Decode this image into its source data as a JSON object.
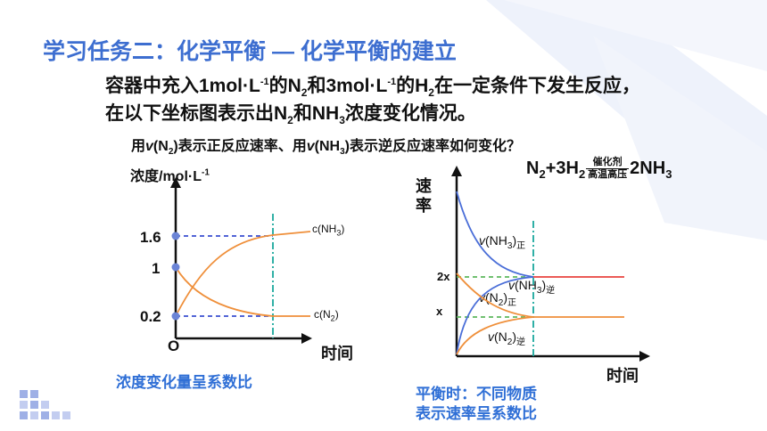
{
  "title": "学习任务二：化学平衡 — 化学平衡的建立",
  "paragraph": "容器中充入1mol·L-1的N2和3mol·L-1的H2在一定条件下发生反应，在以下坐标图表示出N2和NH3浓度变化情况。",
  "question": "用v(N2)表示正反应速率、用v(NH3)表示逆反应速率如何变化？",
  "equation": {
    "left": "N2+3H2",
    "catalyst": "催化剂",
    "condition": "高温高压",
    "right": "2NH3"
  },
  "concentration_chart": {
    "ylabel": "浓度/mol·L-1",
    "xlabel": "时间",
    "origin": "O",
    "y_ticks": [
      "1.6",
      "1",
      "0.2"
    ],
    "series": [
      {
        "name": "c(NH3)",
        "start": 0,
        "end": 1.6
      },
      {
        "name": "c(N2)",
        "start": 1,
        "end": 0.2
      }
    ]
  },
  "rate_chart": {
    "ylabel": "速率",
    "xlabel": "时间",
    "y_ticks": [
      "2x",
      "x"
    ],
    "series": [
      {
        "name": "v(NH3)正"
      },
      {
        "name": "v(NH3)逆"
      },
      {
        "name": "v(N2)正"
      },
      {
        "name": "v(N2)逆"
      }
    ]
  },
  "notes": {
    "left": "浓度变化量呈系数比",
    "right_line1": "平衡时：不同物质",
    "right_line2": "表示速率呈系数比"
  },
  "colors": {
    "title": "#3d6ed0",
    "orange_curve": "#ef8f3a",
    "blue_curve": "#4a6ed8",
    "red_line": "#e8423e",
    "green_dash": "#5cb85c",
    "teal_dash": "#1aa79c",
    "note_blue": "#2f6fd6"
  }
}
